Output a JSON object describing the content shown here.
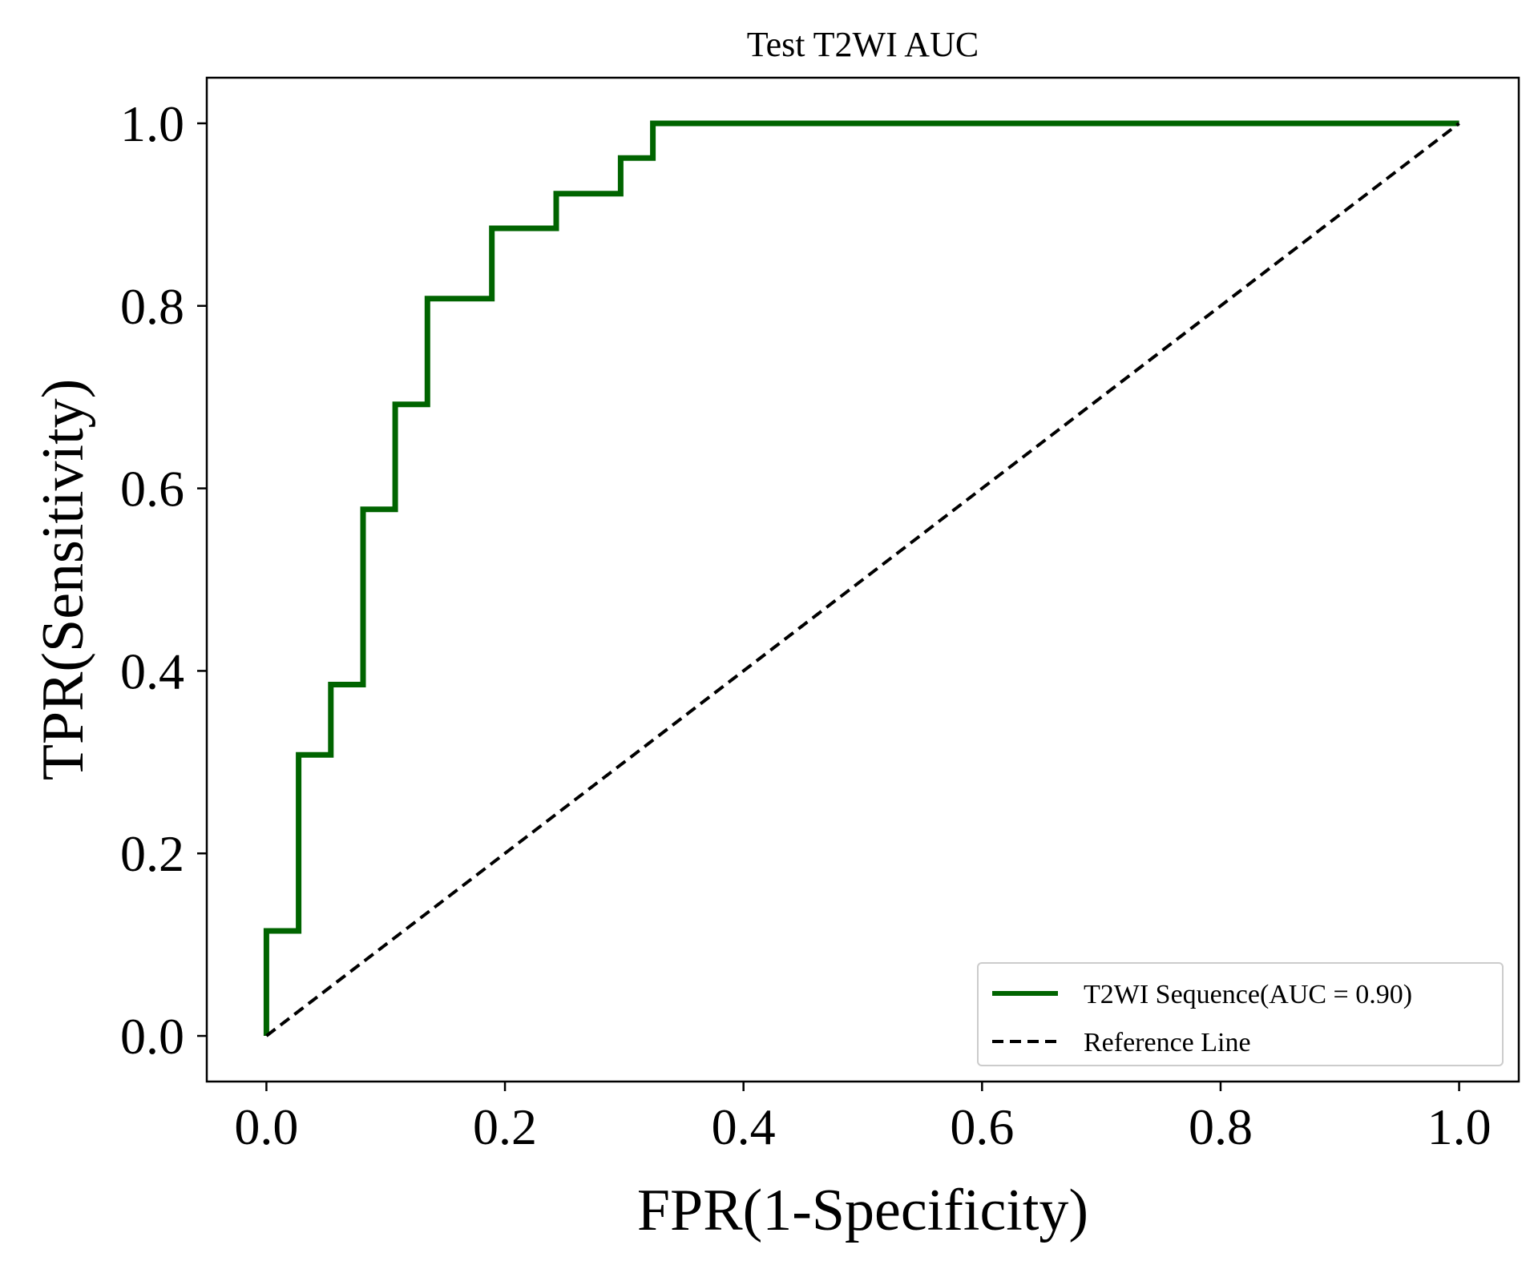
{
  "chart_data": {
    "type": "line",
    "title": "Test T2WI AUC",
    "xlabel": "FPR(1-Specificity)",
    "ylabel": "TPR(Sensitivity)",
    "xlim": [
      -0.05,
      1.05
    ],
    "ylim": [
      -0.05,
      1.05
    ],
    "xticks": [
      0.0,
      0.2,
      0.4,
      0.6,
      0.8,
      1.0
    ],
    "yticks": [
      0.0,
      0.2,
      0.4,
      0.6,
      0.8,
      1.0
    ],
    "xtick_labels": [
      "0.0",
      "0.2",
      "0.4",
      "0.6",
      "0.8",
      "1.0"
    ],
    "ytick_labels": [
      "0.0",
      "0.2",
      "0.4",
      "0.6",
      "0.8",
      "1.0"
    ],
    "grid": false,
    "legend_position": "lower-right",
    "series": [
      {
        "name": "T2WI Sequence(AUC = 0.90)",
        "color": "#006400",
        "style": "solid",
        "x": [
          0.0,
          0.0,
          0.027,
          0.027,
          0.054,
          0.054,
          0.081,
          0.081,
          0.108,
          0.108,
          0.135,
          0.135,
          0.189,
          0.189,
          0.243,
          0.243,
          0.297,
          0.297,
          0.324,
          0.324,
          1.0
        ],
        "y": [
          0.0,
          0.115,
          0.115,
          0.308,
          0.308,
          0.385,
          0.385,
          0.577,
          0.577,
          0.692,
          0.692,
          0.808,
          0.808,
          0.885,
          0.885,
          0.923,
          0.923,
          0.962,
          0.962,
          1.0,
          1.0
        ]
      },
      {
        "name": "Reference Line",
        "color": "#000000",
        "style": "dashed",
        "x": [
          0.0,
          1.0
        ],
        "y": [
          0.0,
          1.0
        ]
      }
    ]
  }
}
